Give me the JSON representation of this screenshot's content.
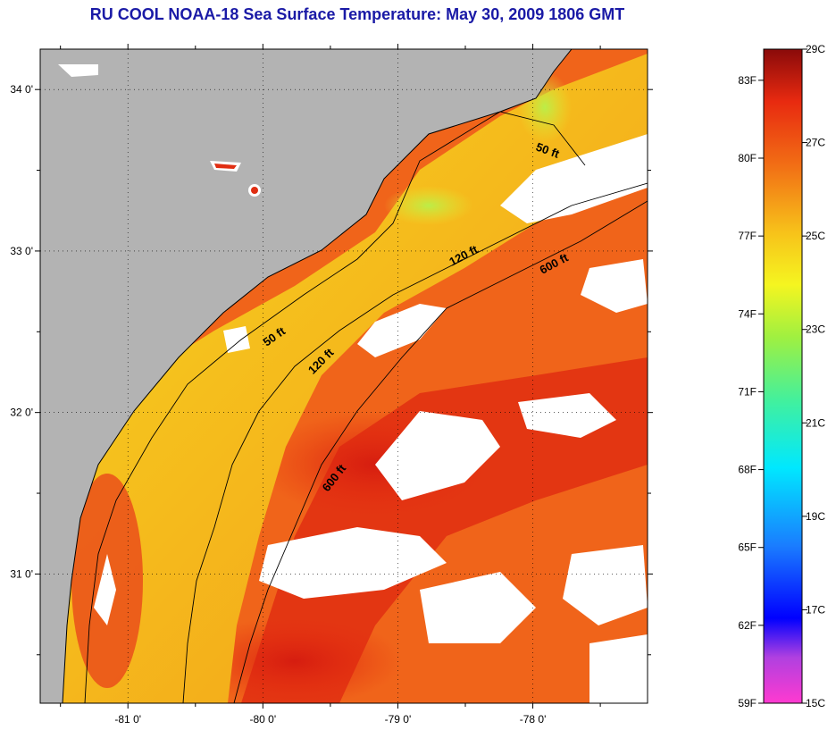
{
  "title": "RU COOL  NOAA-18  Sea Surface Temperature:  May 30, 2009 1806 GMT",
  "map": {
    "lon_range": [
      -81.65,
      -77.15
    ],
    "lat_range": [
      30.2,
      34.25
    ],
    "lat_ticks": [
      {
        "value": 34,
        "label": "34 0'"
      },
      {
        "value": 33,
        "label": "33 0'"
      },
      {
        "value": 32,
        "label": "32 0'"
      },
      {
        "value": 31,
        "label": "31 0'"
      }
    ],
    "lon_ticks": [
      {
        "value": -81,
        "label": "-81 0'"
      },
      {
        "value": -80,
        "label": "-80 0'"
      },
      {
        "value": -79,
        "label": "-79 0'"
      },
      {
        "value": -78,
        "label": "-78 0'"
      }
    ],
    "contour_labels": [
      {
        "text": "50 ft",
        "lon": -77.9,
        "lat": 33.6
      },
      {
        "text": "120 ft",
        "lon": -78.5,
        "lat": 32.95
      },
      {
        "text": "600 ft",
        "lon": -77.83,
        "lat": 32.9
      },
      {
        "text": "50 ft",
        "lon": -79.9,
        "lat": 32.45
      },
      {
        "text": "120 ft",
        "lon": -79.55,
        "lat": 32.3
      },
      {
        "text": "600 ft",
        "lon": -79.45,
        "lat": 31.58
      }
    ],
    "colors": {
      "land": "#b3b3b3",
      "cloud": "#ffffff",
      "water_warm": "#e62b12",
      "water_mid": "#f26a12",
      "water_cool": "#f7c21a",
      "water_cold": "#c8f03a"
    }
  },
  "colorbar": {
    "celsius": [
      {
        "value": 29,
        "label": "29C"
      },
      {
        "value": 27,
        "label": "27C"
      },
      {
        "value": 25,
        "label": "25C"
      },
      {
        "value": 23,
        "label": "23C"
      },
      {
        "value": 21,
        "label": "21C"
      },
      {
        "value": 19,
        "label": "19C"
      },
      {
        "value": 17,
        "label": "17C"
      },
      {
        "value": 15,
        "label": "15C"
      }
    ],
    "fahrenheit": [
      {
        "value": 83,
        "label": "83F"
      },
      {
        "value": 80,
        "label": "80F"
      },
      {
        "value": 77,
        "label": "77F"
      },
      {
        "value": 74,
        "label": "74F"
      },
      {
        "value": 71,
        "label": "71F"
      },
      {
        "value": 68,
        "label": "68F"
      },
      {
        "value": 65,
        "label": "65F"
      },
      {
        "value": 62,
        "label": "62F"
      },
      {
        "value": 59,
        "label": "59F"
      }
    ],
    "range_c": [
      15,
      29
    ]
  }
}
